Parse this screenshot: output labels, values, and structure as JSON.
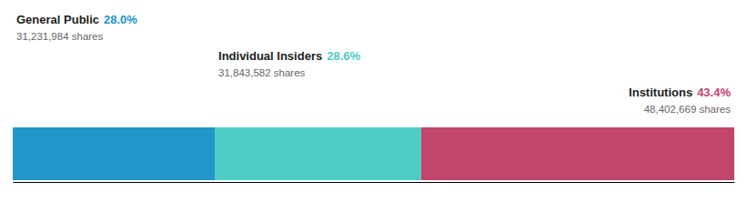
{
  "chart_data": {
    "type": "bar",
    "orientation": "horizontal",
    "stacked": true,
    "data_labels": true,
    "tick_labels": false,
    "xlim": [
      0,
      100
    ],
    "series": [
      {
        "name": "General Public",
        "color": "#2196C9",
        "values": [
          28.0
        ],
        "value_labels": [
          "28.0%"
        ],
        "shares": [
          31231984
        ],
        "shares_labels": [
          "31,231,984 shares"
        ]
      },
      {
        "name": "Individual Insiders",
        "color": "#4ecdc4",
        "values": [
          28.6
        ],
        "value_labels": [
          "28.6%"
        ],
        "shares": [
          31843582
        ],
        "shares_labels": [
          "31,843,582 shares"
        ]
      },
      {
        "name": "Institutions",
        "color": "#c2456b",
        "values": [
          43.4
        ],
        "value_labels": [
          "43.4%"
        ],
        "shares": [
          48402669
        ],
        "shares_labels": [
          "48,402,669 shares"
        ]
      }
    ]
  }
}
